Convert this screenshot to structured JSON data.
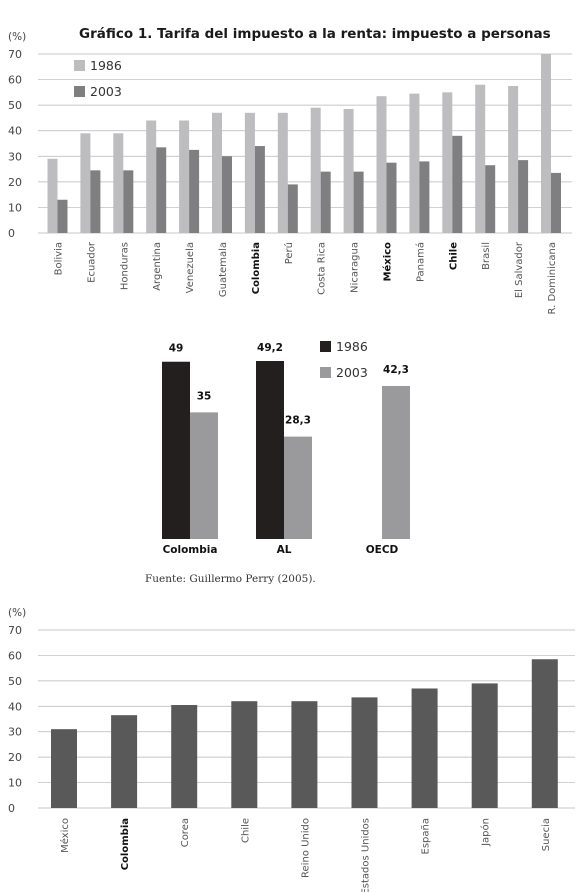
{
  "colors": {
    "c1986_light": "#bdbdc0",
    "c2003_dark": "#7f7f81",
    "c1986_black": "#231f1e",
    "c2003_mid": "#9a9a9c",
    "c_single": "#595959"
  },
  "source": "Fuente: Guillermo Perry (2005).",
  "chart_data": [
    {
      "type": "bar",
      "title": "Gráfico 1. Tarifa del impuesto a la renta: impuesto a personas",
      "unit_label": "(%)",
      "ylim": [
        0,
        70
      ],
      "yticks": [
        0,
        10,
        20,
        30,
        40,
        50,
        60,
        70
      ],
      "grid": true,
      "legend_position": "top-left",
      "categories": [
        "Bolivia",
        "Ecuador",
        "Honduras",
        "Argentina",
        "Venezuela",
        "Guatemala",
        "Colombia",
        "Perú",
        "Costa Rica",
        "Nicaragua",
        "México",
        "Panamá",
        "Chile",
        "Brasil",
        "El Salvador",
        "R. Dominicana"
      ],
      "bold_categories": [
        "Colombia",
        "México",
        "Chile"
      ],
      "series": [
        {
          "name": "1986",
          "values": [
            29,
            39,
            39,
            44,
            44,
            47,
            47,
            47,
            49,
            48.5,
            53.5,
            54.5,
            55,
            58,
            57.5,
            70
          ]
        },
        {
          "name": "2003",
          "values": [
            13,
            24.5,
            24.5,
            33.5,
            32.5,
            30,
            34,
            19,
            24,
            24,
            27.5,
            28,
            38,
            26.5,
            28.5,
            23.5
          ]
        }
      ]
    },
    {
      "type": "bar",
      "ylim": [
        0,
        60
      ],
      "grid": false,
      "legend_position": "top-right",
      "categories": [
        "Colombia",
        "AL",
        "OECD"
      ],
      "series": [
        {
          "name": "1986",
          "values": [
            49,
            49.2,
            null
          ],
          "labels": [
            "49",
            "49,2",
            ""
          ]
        },
        {
          "name": "2003",
          "values": [
            35,
            28.3,
            42.3
          ],
          "labels": [
            "35",
            "28,3",
            "42,3"
          ]
        }
      ]
    },
    {
      "type": "bar",
      "unit_label": "(%)",
      "ylim": [
        0,
        70
      ],
      "yticks": [
        0,
        10,
        20,
        30,
        40,
        50,
        60,
        70
      ],
      "grid": true,
      "categories": [
        "México",
        "Colombia",
        "Corea",
        "Chile",
        "Reino Unido",
        "Estados Unidos",
        "España",
        "Japón",
        "Suecia"
      ],
      "bold_categories": [
        "Colombia"
      ],
      "values": [
        31,
        36.5,
        40.5,
        42,
        42,
        43.5,
        47,
        49,
        58.5
      ]
    }
  ]
}
